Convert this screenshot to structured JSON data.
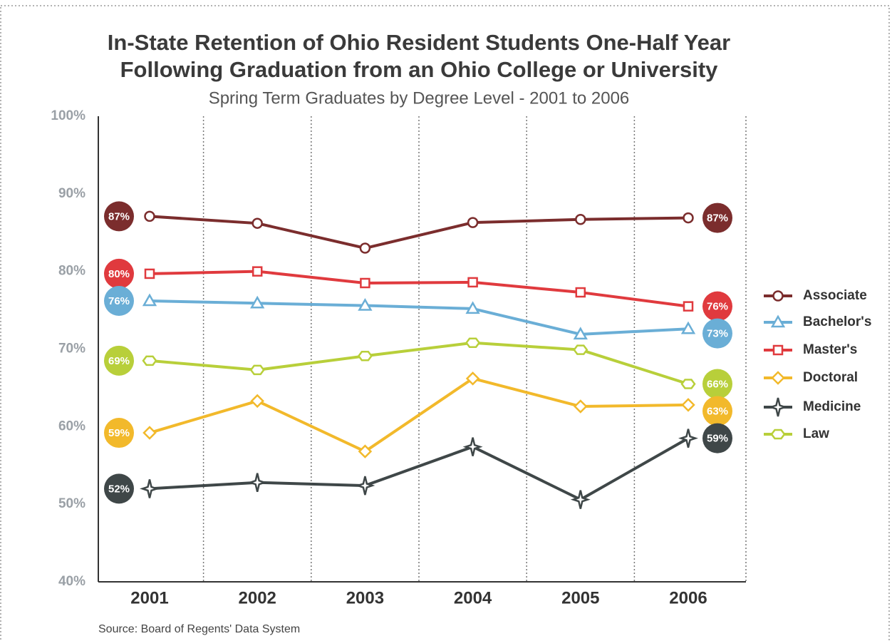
{
  "chart_data": {
    "type": "line",
    "title": [
      "In-State Retention of Ohio Resident Students One-Half Year",
      "Following Graduation from an Ohio College or University"
    ],
    "subtitle": "Spring Term Graduates by Degree Level - 2001 to 2006",
    "source": "Source: Board of Regents' Data System",
    "categories": [
      "2001",
      "2002",
      "2003",
      "2004",
      "2005",
      "2006"
    ],
    "ylim": [
      40,
      100
    ],
    "yticks": [
      {
        "value": 40,
        "label": "40%"
      },
      {
        "value": 50,
        "label": "50%"
      },
      {
        "value": 60,
        "label": "60%"
      },
      {
        "value": 70,
        "label": "70%"
      },
      {
        "value": 80,
        "label": "80%"
      },
      {
        "value": 90,
        "label": "90%"
      },
      {
        "value": 100,
        "label": "100%"
      }
    ],
    "legend": "right",
    "series": [
      {
        "name": "Associate",
        "color": "#7b2d2d",
        "marker": "circle",
        "values": [
          87.1,
          86.2,
          83.0,
          86.3,
          86.7,
          86.9
        ],
        "value_labels": [
          "87%",
          null,
          null,
          null,
          null,
          "87%"
        ]
      },
      {
        "name": "Bachelor's",
        "color": "#6aaed6",
        "marker": "triangle",
        "values": [
          76.2,
          75.9,
          75.6,
          75.2,
          71.9,
          72.6
        ],
        "value_labels": [
          "76%",
          null,
          null,
          null,
          null,
          "73%"
        ]
      },
      {
        "name": "Master's",
        "color": "#e03a3e",
        "marker": "square",
        "values": [
          79.7,
          80.0,
          78.5,
          78.6,
          77.3,
          75.5
        ],
        "value_labels": [
          "80%",
          null,
          null,
          null,
          null,
          "76%"
        ]
      },
      {
        "name": "Doctoral",
        "color": "#f2b92b",
        "marker": "diamond",
        "values": [
          59.2,
          63.3,
          56.8,
          66.2,
          62.6,
          62.8
        ],
        "value_labels": [
          "59%",
          null,
          null,
          null,
          null,
          "63%"
        ]
      },
      {
        "name": "Medicine",
        "color": "#3f4748",
        "marker": "star",
        "values": [
          52.0,
          52.8,
          52.4,
          57.4,
          50.6,
          58.5
        ],
        "value_labels": [
          "52%",
          null,
          null,
          null,
          null,
          "59%"
        ]
      },
      {
        "name": "Law",
        "color": "#b8cf3a",
        "marker": "hexagon",
        "values": [
          68.5,
          67.3,
          69.1,
          70.8,
          69.9,
          65.5
        ],
        "value_labels": [
          "69%",
          null,
          null,
          null,
          null,
          "66%"
        ]
      }
    ]
  }
}
